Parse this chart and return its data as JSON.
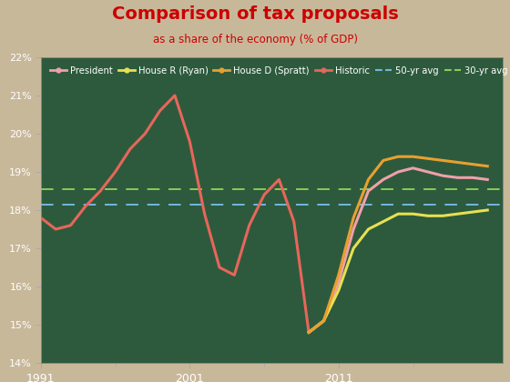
{
  "title": "Comparison of tax proposals",
  "subtitle": "as a share of the economy (% of GDP)",
  "title_color": "#cc0000",
  "outer_bg_color": "#c8b89a",
  "plot_bg_color": "#2d5a3d",
  "text_color": "#ffffff",
  "historic_years": [
    1991,
    1992,
    1993,
    1994,
    1995,
    1996,
    1997,
    1998,
    1999,
    2000,
    2001,
    2002,
    2003,
    2004,
    2005,
    2006,
    2007,
    2008,
    2009,
    2010
  ],
  "historic_values": [
    17.8,
    17.5,
    17.6,
    18.1,
    18.5,
    19.0,
    19.6,
    20.0,
    20.6,
    21.0,
    19.8,
    17.9,
    16.5,
    16.3,
    17.6,
    18.4,
    18.8,
    17.7,
    14.8,
    15.1
  ],
  "proposal_years": [
    2009,
    2010,
    2011,
    2012,
    2013,
    2014,
    2015,
    2016,
    2017,
    2018,
    2019,
    2020,
    2021
  ],
  "president_values": [
    14.8,
    15.1,
    16.1,
    17.5,
    18.5,
    18.8,
    19.0,
    19.1,
    19.0,
    18.9,
    18.85,
    18.85,
    18.8
  ],
  "ryan_values": [
    14.8,
    15.1,
    15.9,
    17.0,
    17.5,
    17.7,
    17.9,
    17.9,
    17.85,
    17.85,
    17.9,
    17.95,
    18.0
  ],
  "spratt_values": [
    14.8,
    15.1,
    16.3,
    17.8,
    18.8,
    19.3,
    19.4,
    19.4,
    19.35,
    19.3,
    19.25,
    19.2,
    19.15
  ],
  "historic_color": "#e8665a",
  "president_color": "#f0a0aa",
  "ryan_color": "#e8e050",
  "spratt_color": "#e8a030",
  "avg50_value": 18.15,
  "avg30_value": 18.55,
  "avg50_color": "#70b8e0",
  "avg30_color": "#88cc55",
  "ylim": [
    14.0,
    22.0
  ],
  "yticks": [
    14,
    15,
    16,
    17,
    18,
    19,
    20,
    21,
    22
  ],
  "xticks": [
    1991,
    2001,
    2011
  ],
  "minor_xticks": [
    1996,
    2006,
    2016
  ],
  "xmin": 1991,
  "xmax": 2022
}
